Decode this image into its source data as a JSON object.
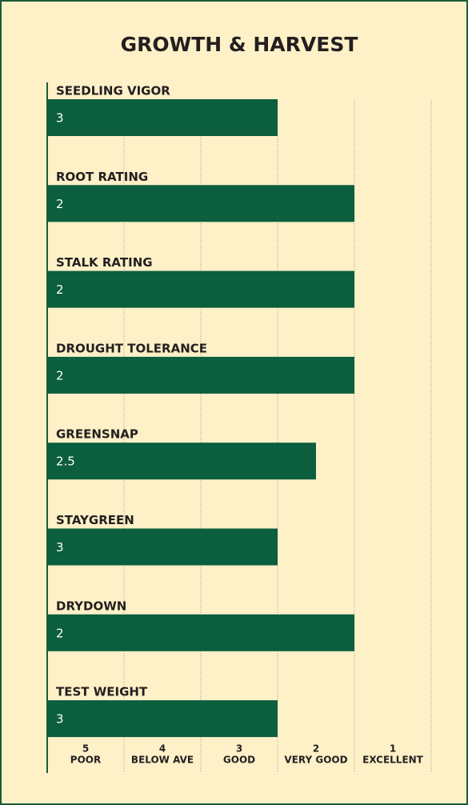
{
  "chart_data": {
    "type": "bar",
    "orientation": "horizontal",
    "title": "GROWTH & HARVEST",
    "categories": [
      "SEEDLING VIGOR",
      "ROOT RATING",
      "STALK RATING",
      "DROUGHT TOLERANCE",
      "GREENSNAP",
      "STAYGREEN",
      "DRYDOWN",
      "TEST WEIGHT"
    ],
    "values": [
      3,
      2,
      2,
      2,
      2.5,
      3,
      2,
      3
    ],
    "color": "#0b5e3e",
    "xlim": [
      6,
      1
    ],
    "xticks": [
      5,
      4,
      3,
      2,
      1
    ],
    "xtick_labels": [
      "POOR",
      "BELOW AVE",
      "GOOD",
      "VERY GOOD",
      "EXCELLENT"
    ],
    "grid": true
  }
}
